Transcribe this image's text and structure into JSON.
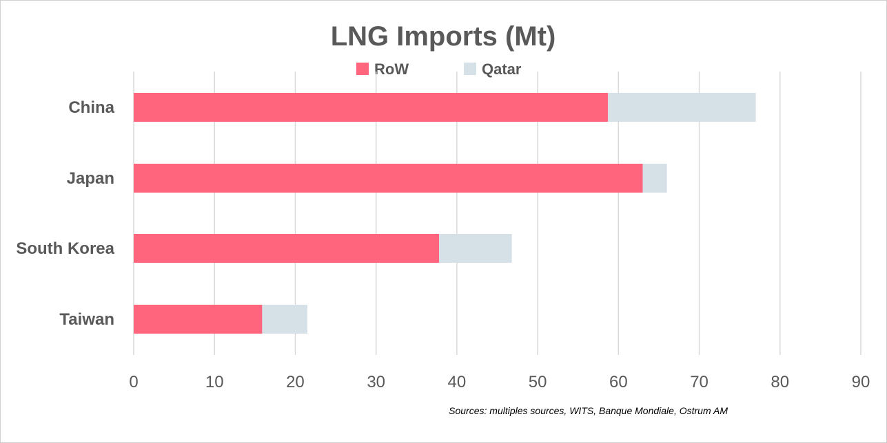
{
  "chart_data": {
    "type": "bar",
    "orientation": "horizontal",
    "stacked": true,
    "title": "LNG Imports (Mt)",
    "categories": [
      "China",
      "Japan",
      "South Korea",
      "Taiwan"
    ],
    "series": [
      {
        "name": "RoW",
        "color": "#ff657d",
        "values": [
          58.7,
          63.0,
          37.8,
          15.9
        ]
      },
      {
        "name": "Qatar",
        "color": "#d6e0e7",
        "values": [
          18.3,
          3.0,
          9.0,
          5.6
        ]
      }
    ],
    "xlim": [
      0,
      90
    ],
    "xticks": [
      0,
      10,
      20,
      30,
      40,
      50,
      60,
      70,
      80,
      90
    ],
    "grid": true,
    "legend_position": "top",
    "xlabel": "",
    "ylabel": "",
    "source": "Sources: multiples sources, WITS, Banque Mondiale, Ostrum AM"
  },
  "colors": {
    "grid": "#d9d9d9",
    "text": "#595959"
  }
}
